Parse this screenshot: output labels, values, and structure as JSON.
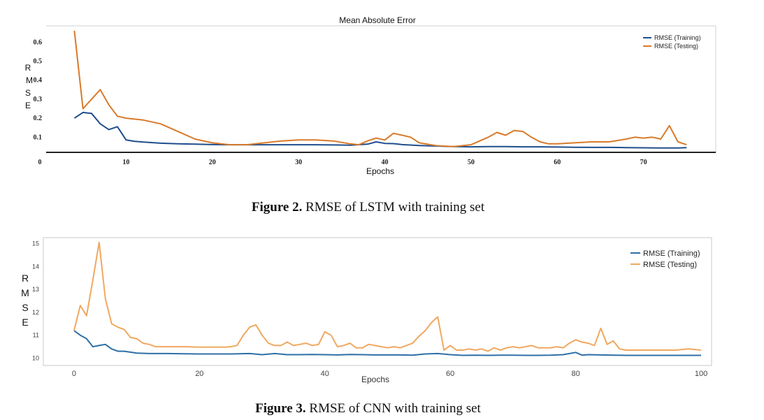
{
  "chart_data": [
    {
      "type": "line",
      "title": "Mean Absolute Error",
      "xlabel": "Epochs",
      "ylabel": "RMSE",
      "x_ticks": [
        "0",
        "10",
        "20",
        "30",
        "40",
        "50",
        "60",
        "70"
      ],
      "y_ticks": [
        "0.1",
        "0.2",
        "0.3",
        "0.4",
        "0.5",
        "0.6"
      ],
      "xlim": [
        0,
        77
      ],
      "ylim": [
        0.02,
        0.66
      ],
      "grid": false,
      "legend": "top-right",
      "caption_bold": "Figure 2.",
      "caption_rest": " RMSE of LSTM with training set",
      "series": [
        {
          "name": "RMSE (Training)",
          "color": "#1f4e8c",
          "x": [
            4,
            5,
            6,
            7,
            8,
            9,
            10,
            11,
            12,
            14,
            16,
            18,
            20,
            22,
            24,
            26,
            28,
            30,
            32,
            34,
            36,
            38,
            39,
            40,
            41,
            42,
            44,
            46,
            48,
            50,
            52,
            54,
            56,
            58,
            60,
            62,
            64,
            66,
            68,
            70,
            72,
            74,
            75
          ],
          "y": [
            0.2,
            0.23,
            0.225,
            0.17,
            0.14,
            0.155,
            0.085,
            0.078,
            0.074,
            0.068,
            0.065,
            0.063,
            0.061,
            0.06,
            0.06,
            0.06,
            0.06,
            0.06,
            0.06,
            0.059,
            0.058,
            0.063,
            0.075,
            0.067,
            0.066,
            0.061,
            0.056,
            0.053,
            0.05,
            0.049,
            0.05,
            0.05,
            0.049,
            0.049,
            0.048,
            0.047,
            0.046,
            0.046,
            0.045,
            0.044,
            0.043,
            0.043,
            0.045
          ]
        },
        {
          "name": "RMSE (Testing)",
          "color": "#d87a2a",
          "x": [
            4,
            5,
            6,
            7,
            8,
            9,
            10,
            12,
            14,
            16,
            18,
            20,
            22,
            24,
            26,
            28,
            30,
            32,
            34,
            36,
            37,
            38,
            39,
            40,
            41,
            42,
            43,
            44,
            46,
            48,
            50,
            52,
            53,
            54,
            55,
            56,
            57,
            58,
            59,
            60,
            62,
            64,
            66,
            68,
            69,
            70,
            71,
            72,
            73,
            74,
            75
          ],
          "y": [
            0.66,
            0.25,
            0.3,
            0.35,
            0.27,
            0.21,
            0.2,
            0.19,
            0.17,
            0.13,
            0.09,
            0.07,
            0.06,
            0.06,
            0.07,
            0.08,
            0.085,
            0.085,
            0.08,
            0.065,
            0.06,
            0.08,
            0.095,
            0.085,
            0.12,
            0.11,
            0.1,
            0.07,
            0.055,
            0.05,
            0.06,
            0.1,
            0.125,
            0.11,
            0.135,
            0.13,
            0.1,
            0.075,
            0.065,
            0.065,
            0.07,
            0.075,
            0.075,
            0.09,
            0.1,
            0.095,
            0.1,
            0.09,
            0.16,
            0.075,
            0.06
          ]
        }
      ]
    },
    {
      "type": "line",
      "title": "",
      "xlabel": "Epochs",
      "ylabel": "RMSE",
      "x_ticks": [
        "0",
        "20",
        "40",
        "60",
        "80",
        "100"
      ],
      "y_ticks": [
        "10",
        "11",
        "12",
        "13",
        "14",
        "15"
      ],
      "xlim": [
        -4,
        101
      ],
      "ylim": [
        9.8,
        15.2
      ],
      "grid": false,
      "legend": "top-right",
      "caption_bold": "Figure 3.",
      "caption_rest": " RMSE of CNN with training set",
      "series": [
        {
          "name": "RMSE (Training)",
          "color": "#2e6fa8",
          "x": [
            0,
            1,
            2,
            3,
            4,
            5,
            6,
            7,
            8,
            10,
            12,
            15,
            20,
            25,
            28,
            30,
            32,
            34,
            36,
            38,
            40,
            42,
            44,
            46,
            48,
            50,
            52,
            54,
            56,
            58,
            60,
            62,
            64,
            66,
            68,
            70,
            72,
            74,
            76,
            78,
            80,
            81,
            82,
            84,
            86,
            88,
            90,
            92,
            94,
            96,
            98,
            100
          ],
          "y": [
            11.2,
            11.0,
            10.85,
            10.5,
            10.55,
            10.6,
            10.4,
            10.3,
            10.3,
            10.22,
            10.2,
            10.2,
            10.18,
            10.18,
            10.2,
            10.15,
            10.2,
            10.15,
            10.15,
            10.16,
            10.15,
            10.14,
            10.16,
            10.15,
            10.14,
            10.14,
            10.14,
            10.13,
            10.18,
            10.2,
            10.15,
            10.12,
            10.13,
            10.12,
            10.13,
            10.13,
            10.12,
            10.12,
            10.13,
            10.15,
            10.25,
            10.13,
            10.15,
            10.14,
            10.13,
            10.12,
            10.12,
            10.12,
            10.12,
            10.12,
            10.12,
            10.12
          ]
        },
        {
          "name": "RMSE (Testing)",
          "color": "#f0a860",
          "x": [
            0,
            1,
            2,
            3,
            4,
            5,
            6,
            7,
            8,
            9,
            10,
            11,
            12,
            13,
            14,
            16,
            18,
            20,
            22,
            24,
            25,
            26,
            27,
            28,
            29,
            30,
            31,
            32,
            33,
            34,
            35,
            36,
            37,
            38,
            39,
            40,
            41,
            42,
            43,
            44,
            45,
            46,
            47,
            48,
            49,
            50,
            51,
            52,
            53,
            54,
            55,
            56,
            57,
            58,
            59,
            60,
            61,
            62,
            63,
            64,
            65,
            66,
            67,
            68,
            69,
            70,
            71,
            72,
            73,
            74,
            75,
            76,
            77,
            78,
            79,
            80,
            81,
            82,
            83,
            84,
            85,
            86,
            87,
            88,
            90,
            92,
            94,
            96,
            98,
            100
          ],
          "y": [
            11.2,
            12.3,
            11.85,
            13.4,
            15.05,
            12.6,
            11.5,
            11.35,
            11.25,
            10.9,
            10.85,
            10.65,
            10.6,
            10.5,
            10.5,
            10.5,
            10.5,
            10.48,
            10.48,
            10.48,
            10.5,
            10.55,
            11.0,
            11.35,
            11.45,
            11.0,
            10.65,
            10.55,
            10.55,
            10.7,
            10.55,
            10.6,
            10.65,
            10.55,
            10.6,
            11.15,
            11.0,
            10.5,
            10.55,
            10.65,
            10.45,
            10.45,
            10.6,
            10.55,
            10.5,
            10.45,
            10.5,
            10.45,
            10.55,
            10.65,
            10.95,
            11.2,
            11.55,
            11.8,
            10.35,
            10.55,
            10.35,
            10.35,
            10.4,
            10.35,
            10.4,
            10.3,
            10.45,
            10.35,
            10.45,
            10.5,
            10.45,
            10.5,
            10.55,
            10.45,
            10.45,
            10.45,
            10.5,
            10.45,
            10.65,
            10.8,
            10.7,
            10.65,
            10.55,
            11.3,
            10.6,
            10.75,
            10.4,
            10.35,
            10.35,
            10.35,
            10.35,
            10.35,
            10.4,
            10.35
          ]
        }
      ]
    }
  ]
}
